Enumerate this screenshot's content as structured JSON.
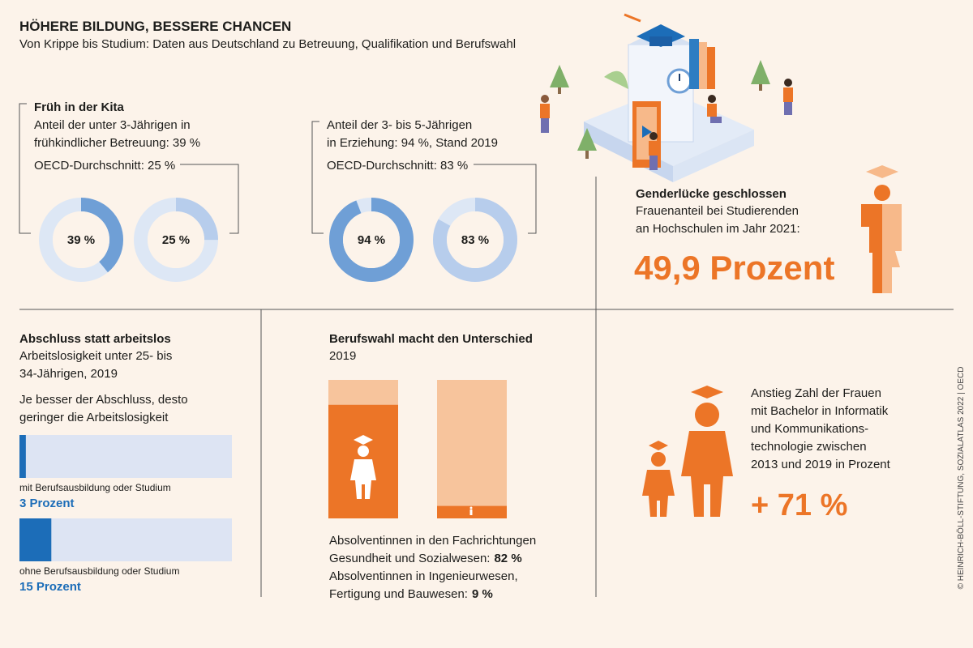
{
  "header": {
    "title": "HÖHERE BILDUNG, BESSERE CHANCEN",
    "subtitle": "Von Krippe bis Studium: Daten aus Deutschland zu Betreuung, Qualifikation und Berufswahl"
  },
  "kita": {
    "title": "Früh in der Kita",
    "lines": [
      "Anteil der unter 3-Jährigen in",
      "frühkindlicher Betreuung: 39 %"
    ],
    "oecd": "OECD-Durchschnitt: 25 %",
    "donuts": [
      {
        "value": 39,
        "label": "39 %",
        "color": "#6f9fd6"
      },
      {
        "value": 25,
        "label": "25 %",
        "color": "#b7cdec"
      }
    ]
  },
  "erziehung": {
    "lines": [
      "Anteil der 3- bis 5-Jährigen",
      "in Erziehung: 94 %, Stand 2019"
    ],
    "oecd": "OECD-Durchschnitt: 83 %",
    "donuts": [
      {
        "value": 94,
        "label": "94 %",
        "color": "#6f9fd6"
      },
      {
        "value": 83,
        "label": "83 %",
        "color": "#b7cdec"
      }
    ]
  },
  "gender": {
    "title": "Genderlücke geschlossen",
    "lines": [
      "Frauenanteil bei Studierenden",
      "an Hochschulen im Jahr 2021:"
    ],
    "highlight": "49,9 Prozent"
  },
  "abschluss": {
    "title": "Abschluss statt arbeitslos",
    "lines": [
      "Arbeitslosigkeit unter 25- bis",
      "34-Jährigen, 2019"
    ],
    "note": [
      "Je besser der Abschluss, desto",
      "geringer die Arbeitslosigkeit"
    ],
    "xlim": [
      0,
      100
    ],
    "color": "#1c6db8",
    "bars": [
      {
        "name": "mit Berufsausbildung oder Studium",
        "value": 3,
        "label": "3 Prozent"
      },
      {
        "name": "ohne Berufsausbildung oder Studium",
        "value": 15,
        "label": "15 Prozent"
      }
    ]
  },
  "berufswahl": {
    "title": "Berufswahl macht den Unterschied",
    "subtitle": "2019",
    "ylim": [
      0,
      100
    ],
    "color": "#ec7527",
    "bars": [
      {
        "value": 82,
        "text": [
          "Absolventinnen in den Fachrichtungen",
          "Gesundheit und Sozialwesen:"
        ],
        "label": "82 %"
      },
      {
        "value": 9,
        "text": [
          "Absolventinnen in Ingenieurwesen,",
          "Fertigung und Bauwesen:"
        ],
        "label": "9 %"
      }
    ]
  },
  "anstieg": {
    "lines": [
      "Anstieg Zahl der Frauen",
      "mit Bachelor in Informatik",
      "und Kommunikations-",
      "technologie zwischen",
      "2013 und 2019 in Prozent"
    ],
    "highlight": "+ 71 %"
  },
  "credit": "© HEINRICH-BÖLL-STIFTUNG, SOZIALATLAS 2022 | OECD"
}
